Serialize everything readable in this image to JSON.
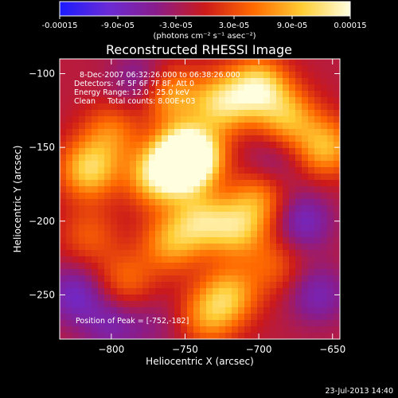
{
  "chart_data": {
    "type": "heatmap",
    "title": "Reconstructed RHESSI Image",
    "xlabel": "Heliocentric X (arcsec)",
    "ylabel": "Heliocentric Y (arcsec)",
    "xlim": [
      -835,
      -645
    ],
    "ylim": [
      -280,
      -90
    ],
    "x_ticks": [
      -800,
      -750,
      -700,
      -650
    ],
    "y_ticks": [
      -100,
      -150,
      -200,
      -250
    ],
    "colorbar": {
      "min": -0.00015,
      "max": 0.00015,
      "tick_labels": [
        "-0.00015",
        "-9.0e-05",
        "-3.0e-05",
        "3.0e-05",
        "9.0e-05",
        "0.00015"
      ],
      "unit_label": "(photons cm⁻² s⁻¹ asec⁻²)",
      "colors": [
        "#1b1bff",
        "#6a2bd6",
        "#8a1c8a",
        "#cc1a1a",
        "#ff6a00",
        "#ffcc33",
        "#ffffe0"
      ]
    },
    "info_lines": [
      "8-Dec-2007 06:32:26.000 to 06:38:26.000",
      "Detectors: 4F 5F 6F 7F 8F, Att 0",
      "Energy Range: 12.0 - 25.0 keV",
      "Clean     Total counts: 8.00E+03"
    ],
    "peak": {
      "label": "Position of Peak = [-752,-182]",
      "x": -752,
      "y": -182
    },
    "sources": [
      {
        "x": -752,
        "y": -160,
        "value": 1.0
      },
      {
        "x": -745,
        "y": -155,
        "value": 0.85
      },
      {
        "x": -770,
        "y": -170,
        "value": 0.65
      },
      {
        "x": -725,
        "y": -120,
        "value": 0.7
      },
      {
        "x": -760,
        "y": -115,
        "value": 0.55
      },
      {
        "x": -700,
        "y": -110,
        "value": 0.8
      },
      {
        "x": -680,
        "y": -130,
        "value": 0.55
      },
      {
        "x": -815,
        "y": -165,
        "value": 0.7
      },
      {
        "x": -800,
        "y": -140,
        "value": 0.4
      },
      {
        "x": -740,
        "y": -200,
        "value": 0.6
      },
      {
        "x": -760,
        "y": -215,
        "value": 0.5
      },
      {
        "x": -715,
        "y": -205,
        "value": 0.6
      },
      {
        "x": -700,
        "y": -185,
        "value": 0.45
      },
      {
        "x": -655,
        "y": -150,
        "value": 0.6
      },
      {
        "x": -720,
        "y": -250,
        "value": 0.55
      },
      {
        "x": -735,
        "y": -265,
        "value": 0.45
      },
      {
        "x": -790,
        "y": -240,
        "value": 0.35
      },
      {
        "x": -815,
        "y": -210,
        "value": 0.3
      },
      {
        "x": -690,
        "y": -230,
        "value": 0.3
      },
      {
        "x": -660,
        "y": -250,
        "value": -0.35
      },
      {
        "x": -670,
        "y": -200,
        "value": -0.4
      },
      {
        "x": -780,
        "y": -105,
        "value": -0.3
      },
      {
        "x": -825,
        "y": -250,
        "value": -0.4
      },
      {
        "x": -800,
        "y": -270,
        "value": -0.3
      },
      {
        "x": -690,
        "y": -160,
        "value": -0.2
      },
      {
        "x": -770,
        "y": -270,
        "value": -0.15
      }
    ]
  },
  "footer": {
    "timestamp": "23-Jul-2013 14:40"
  }
}
